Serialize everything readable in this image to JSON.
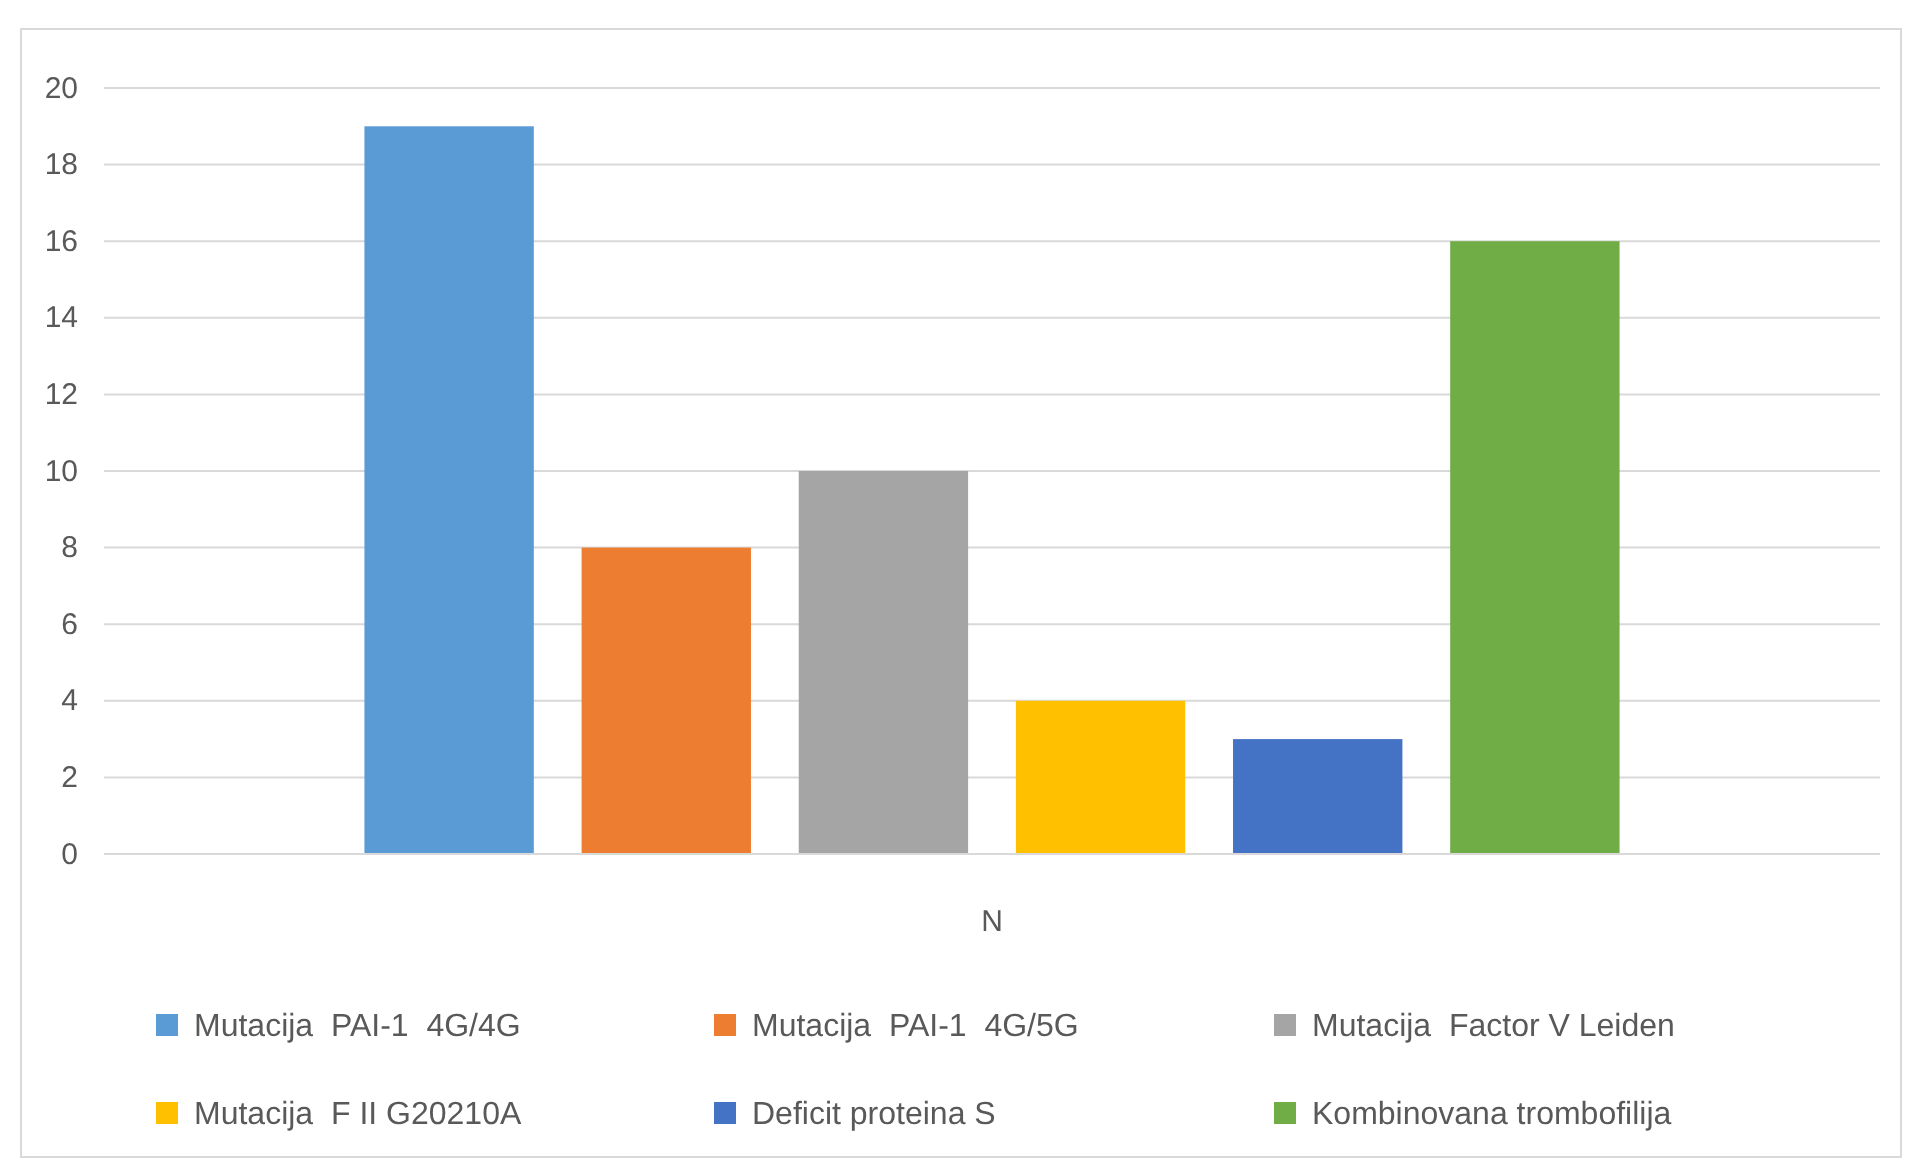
{
  "chart_data": {
    "type": "bar",
    "categories": [
      "N"
    ],
    "series": [
      {
        "name": "Mutacija  PAI-1  4G/4G",
        "color": "#5b9bd5",
        "values": [
          19
        ]
      },
      {
        "name": "Mutacija  PAI-1  4G/5G",
        "color": "#ed7d31",
        "values": [
          8
        ]
      },
      {
        "name": "Mutacija  Factor V Leiden",
        "color": "#a5a5a5",
        "values": [
          10
        ]
      },
      {
        "name": "Mutacija  F II G20210A",
        "color": "#ffc000",
        "values": [
          4
        ]
      },
      {
        "name": "Deficit proteina S",
        "color": "#4472c4",
        "values": [
          3
        ]
      },
      {
        "name": "Kombinovana trombofilija",
        "color": "#70ad47",
        "values": [
          16
        ]
      }
    ],
    "ylim": [
      0,
      20
    ],
    "yticks": [
      0,
      2,
      4,
      6,
      8,
      10,
      12,
      14,
      16,
      18,
      20
    ],
    "grid": "y",
    "legend": "bottom"
  }
}
